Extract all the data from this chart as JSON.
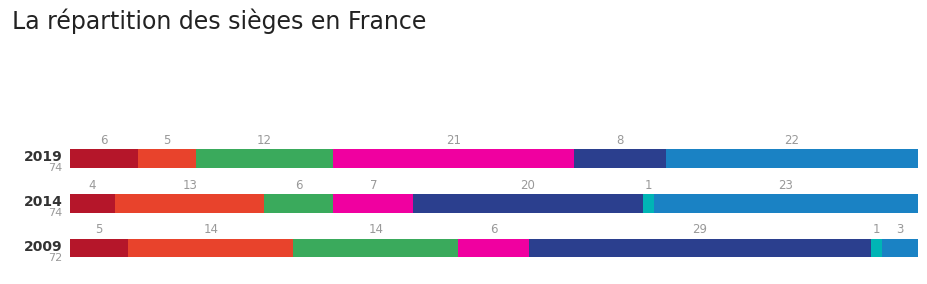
{
  "title": "La répartition des sièges en France",
  "title_fontsize": 17,
  "title_color": "#222222",
  "background_color": "#ffffff",
  "bars": [
    {
      "year": "2019",
      "total": 74,
      "segments": [
        6,
        5,
        12,
        21,
        8,
        22
      ],
      "colors": [
        "#b5162a",
        "#e8432c",
        "#3aaa5c",
        "#f000a0",
        "#2b3f8e",
        "#1a82c4"
      ]
    },
    {
      "year": "2014",
      "total": 74,
      "segments": [
        4,
        13,
        6,
        7,
        20,
        1,
        23
      ],
      "colors": [
        "#b5162a",
        "#e8432c",
        "#3aaa5c",
        "#f000a0",
        "#2b3f8e",
        "#00b5b5",
        "#1a82c4"
      ]
    },
    {
      "year": "2009",
      "total": 72,
      "segments": [
        5,
        14,
        14,
        6,
        29,
        1,
        3
      ],
      "colors": [
        "#b5162a",
        "#e8432c",
        "#3aaa5c",
        "#f000a0",
        "#2b3f8e",
        "#00b5b5",
        "#1a82c4"
      ]
    }
  ],
  "bar_height": 0.42,
  "label_fontsize": 8.5,
  "label_color": "#999999",
  "year_fontsize": 10,
  "year_color": "#333333",
  "total_fontsize": 8,
  "total_color": "#999999"
}
